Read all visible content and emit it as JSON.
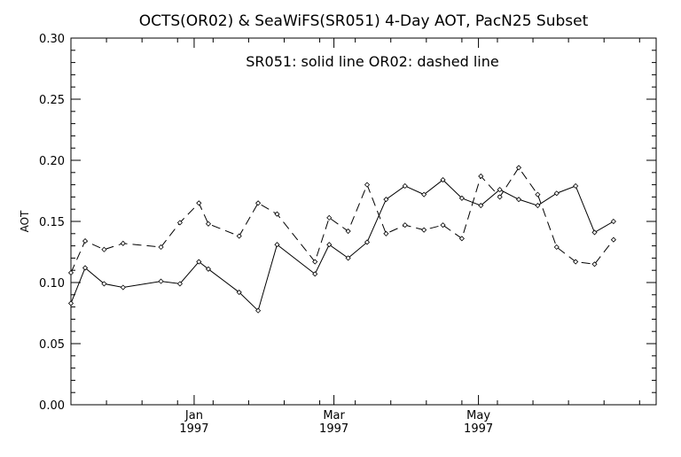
{
  "chart_data": {
    "type": "line",
    "title": "OCTS(OR02) & SeaWiFS(SR051) 4-Day AOT, PacN25 Subset",
    "annotation": "SR051: solid line    OR02: dashed line",
    "xlabel": "",
    "ylabel": "AOT",
    "xlim": [
      "1996-11-10",
      "1997-07-15"
    ],
    "ylim": [
      0,
      0.3
    ],
    "grid": false,
    "x_ticks": [
      {
        "date": "1997-01-01",
        "month": "Jan",
        "year": "1997"
      },
      {
        "date": "1997-03-01",
        "month": "Mar",
        "year": "1997"
      },
      {
        "date": "1997-05-01",
        "month": "May",
        "year": "1997"
      }
    ],
    "y_ticks": [
      "0.00",
      "0.05",
      "0.10",
      "0.15",
      "0.20",
      "0.25",
      "0.30"
    ],
    "series": [
      {
        "name": "SR051",
        "color": "#000000",
        "style": "solid",
        "points": [
          [
            "1996-11-10",
            0.083
          ],
          [
            "1996-11-16",
            0.112
          ],
          [
            "1996-11-24",
            0.099
          ],
          [
            "1996-12-02",
            0.096
          ],
          [
            "1996-12-18",
            0.101
          ],
          [
            "1996-12-26",
            0.099
          ],
          [
            "1997-01-03",
            0.117
          ],
          [
            "1997-01-07",
            0.111
          ],
          [
            "1997-01-20",
            0.092
          ],
          [
            "1997-01-28",
            0.077
          ],
          [
            "1997-02-05",
            0.131
          ],
          [
            "1997-02-21",
            0.107
          ],
          [
            "1997-02-27",
            0.131
          ],
          [
            "1997-03-07",
            0.12
          ],
          [
            "1997-03-15",
            0.133
          ],
          [
            "1997-03-23",
            0.168
          ],
          [
            "1997-03-31",
            0.179
          ],
          [
            "1997-04-08",
            0.172
          ],
          [
            "1997-04-16",
            0.184
          ],
          [
            "1997-04-24",
            0.169
          ],
          [
            "1997-05-02",
            0.163
          ],
          [
            "1997-05-10",
            0.176
          ],
          [
            "1997-05-18",
            0.168
          ],
          [
            "1997-05-26",
            0.163
          ],
          [
            "1997-06-03",
            0.173
          ],
          [
            "1997-06-11",
            0.179
          ],
          [
            "1997-06-19",
            0.141
          ],
          [
            "1997-06-27",
            0.15
          ]
        ]
      },
      {
        "name": "OR02",
        "color": "#000000",
        "style": "dashed",
        "points": [
          [
            "1996-11-10",
            0.108
          ],
          [
            "1996-11-16",
            0.134
          ],
          [
            "1996-11-24",
            0.127
          ],
          [
            "1996-12-02",
            0.132
          ],
          [
            "1996-12-18",
            0.129
          ],
          [
            "1996-12-26",
            0.149
          ],
          [
            "1997-01-03",
            0.165
          ],
          [
            "1997-01-07",
            0.148
          ],
          [
            "1997-01-20",
            0.138
          ],
          [
            "1997-01-28",
            0.165
          ],
          [
            "1997-02-05",
            0.156
          ],
          [
            "1997-02-21",
            0.117
          ],
          [
            "1997-02-27",
            0.153
          ],
          [
            "1997-03-07",
            0.142
          ],
          [
            "1997-03-15",
            0.18
          ],
          [
            "1997-03-23",
            0.14
          ],
          [
            "1997-03-31",
            0.147
          ],
          [
            "1997-04-08",
            0.143
          ],
          [
            "1997-04-16",
            0.147
          ],
          [
            "1997-04-24",
            0.136
          ],
          [
            "1997-05-02",
            0.187
          ],
          [
            "1997-05-10",
            0.17
          ],
          [
            "1997-05-18",
            0.194
          ],
          [
            "1997-05-26",
            0.172
          ],
          [
            "1997-06-03",
            0.129
          ],
          [
            "1997-06-11",
            0.117
          ],
          [
            "1997-06-19",
            0.115
          ],
          [
            "1997-06-27",
            0.135
          ]
        ]
      }
    ]
  }
}
